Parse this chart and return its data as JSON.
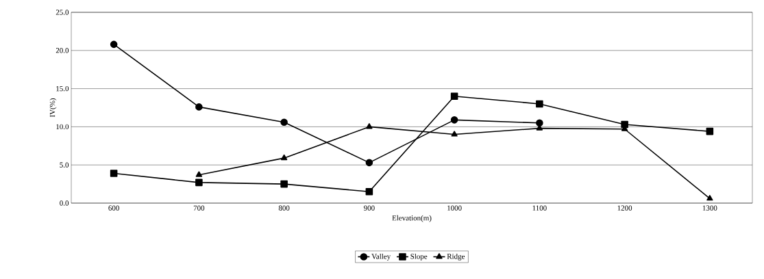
{
  "chart_data": {
    "type": "line",
    "xlabel": "Elevation(m)",
    "ylabel": "IV(%)",
    "categories": [
      "600",
      "700",
      "800",
      "900",
      "1000",
      "1100",
      "1200",
      "1300"
    ],
    "series": [
      {
        "name": "Valley",
        "color": "#000000",
        "marker": "circle",
        "values": [
          20.8,
          12.6,
          10.6,
          5.3,
          10.9,
          10.5,
          null,
          null
        ]
      },
      {
        "name": "Slope",
        "color": "#000000",
        "marker": "square",
        "values": [
          3.9,
          2.7,
          2.5,
          1.5,
          14.0,
          13.0,
          10.3,
          9.4
        ]
      },
      {
        "name": "Ridge",
        "color": "#000000",
        "marker": "triangle",
        "values": [
          null,
          3.7,
          5.9,
          10.0,
          9.0,
          9.8,
          9.7,
          0.6
        ]
      }
    ],
    "ylim": [
      0,
      25
    ],
    "yticks": [
      {
        "value": 0,
        "label": "0.0"
      },
      {
        "value": 5,
        "label": "5.0"
      },
      {
        "value": 10,
        "label": "10.0"
      },
      {
        "value": 15,
        "label": "15.0"
      },
      {
        "value": 20,
        "label": "20.0"
      },
      {
        "value": 25,
        "label": "25.0"
      }
    ],
    "grid": "y",
    "legend": "bottom",
    "line_style": "solid"
  }
}
